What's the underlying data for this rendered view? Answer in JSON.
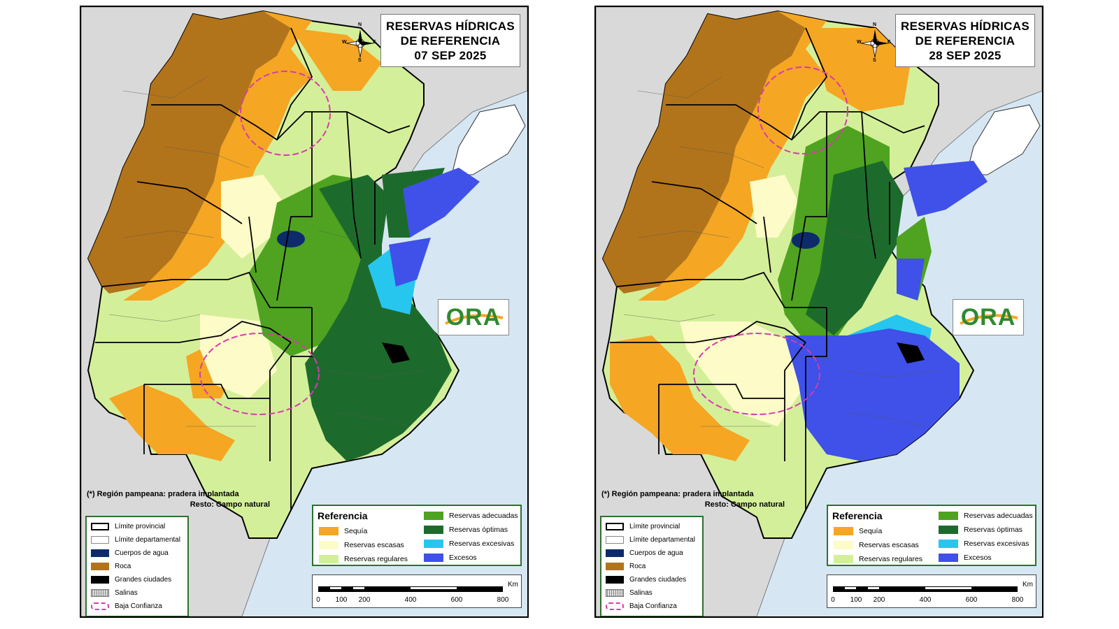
{
  "colors": {
    "sequia": "#f5a623",
    "reservas_escasas": "#fdfbc7",
    "reservas_regulares": "#d4ef9a",
    "reservas_adecuadas": "#4fa320",
    "reservas_optimas": "#1d6b2c",
    "reservas_excesivas": "#26c6ef",
    "excesos": "#3f51e8",
    "roca": "#b2741b",
    "cuerpos_de_agua": "#0d2a6b",
    "grandes_ciudades": "#000000",
    "sea": "#d6e7f3",
    "outside_land": "#d9d9d9",
    "baja_confianza": "#d63caa",
    "legend_border": "#2f6f2f"
  },
  "icons": {
    "compass": "compass-rose-icon",
    "logo": "ora-logo"
  },
  "maps": [
    {
      "id": "sep07",
      "title_lines": [
        "RESERVAS HÍDRICAS",
        "DE REFERENCIA",
        "07 SEP 2025"
      ]
    },
    {
      "id": "sep28",
      "title_lines": [
        "RESERVAS HÍDRICAS",
        "DE REFERENCIA",
        "28 SEP 2025"
      ]
    }
  ],
  "compass_letters": [
    "N",
    "S",
    "E",
    "W"
  ],
  "logo_text": "ORA",
  "note": {
    "line1": "(*) Región pampeana: pradera implantada",
    "line2": "Resto: Campo natural"
  },
  "legend_symbols": [
    {
      "key": "limite_provincial",
      "label": "Límite provincial"
    },
    {
      "key": "limite_departamental",
      "label": "Límite departamental"
    },
    {
      "key": "cuerpos_de_agua",
      "label": "Cuerpos de agua"
    },
    {
      "key": "roca",
      "label": "Roca"
    },
    {
      "key": "grandes_ciudades",
      "label": "Grandes ciudades"
    },
    {
      "key": "salinas",
      "label": "Salinas"
    },
    {
      "key": "baja_confianza",
      "label": "Baja Confianza"
    }
  ],
  "reference": {
    "title": "Referencia",
    "col1": [
      {
        "key": "sequia",
        "label": "Sequía"
      },
      {
        "key": "reservas_escasas",
        "label": "Reservas escasas"
      },
      {
        "key": "reservas_regulares",
        "label": "Reservas regulares"
      }
    ],
    "col2": [
      {
        "key": "reservas_adecuadas",
        "label": "Reservas adecuadas"
      },
      {
        "key": "reservas_optimas",
        "label": "Reservas óptimas"
      },
      {
        "key": "reservas_excesivas",
        "label": "Reservas excesivas"
      },
      {
        "key": "excesos",
        "label": "Excesos"
      }
    ]
  },
  "scale": {
    "unit": "Km",
    "ticks": [
      "0",
      "100",
      "200",
      "400",
      "600",
      "800"
    ],
    "tick_values_km": [
      0,
      100,
      200,
      400,
      600,
      800
    ]
  }
}
